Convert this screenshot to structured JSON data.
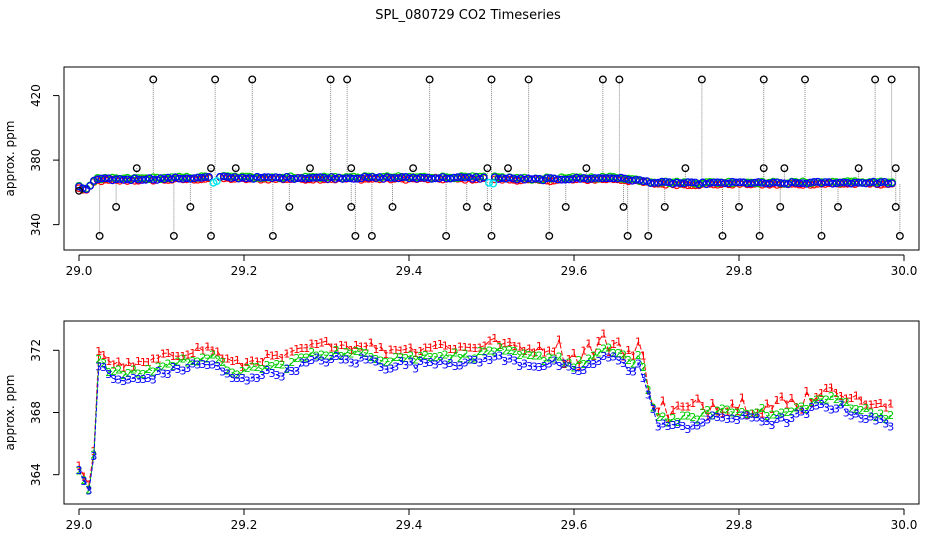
{
  "title": "SPL_080729  CO2 Timeseries",
  "colors": {
    "series1": "#ff0000",
    "series2": "#00cc00",
    "series3": "#0000ff",
    "cyan": "#00e5ee",
    "outlier": "#000000",
    "spike_line": "#888888"
  },
  "chart_data": [
    {
      "type": "scatter",
      "ylabel": "approx. ppm",
      "xlim": [
        29.0,
        30.0
      ],
      "ylim": [
        328,
        434
      ],
      "x_ticks": [
        29.0,
        29.2,
        29.4,
        29.6,
        29.8,
        30.0
      ],
      "x_tick_labels": [
        "29.0",
        "29.2",
        "29.4",
        "29.6",
        "29.8",
        "30.0"
      ],
      "y_ticks": [
        340,
        380,
        420
      ],
      "y_tick_labels": [
        "340",
        "380",
        "420"
      ],
      "series_colors": [
        "red",
        "green",
        "blue"
      ],
      "baseline": [
        [
          29.0,
          363
        ],
        [
          29.01,
          362
        ],
        [
          29.02,
          368
        ],
        [
          29.05,
          368
        ],
        [
          29.1,
          368.5
        ],
        [
          29.15,
          369
        ],
        [
          29.16,
          369.5
        ],
        [
          29.2,
          369
        ],
        [
          29.3,
          369
        ],
        [
          29.35,
          369
        ],
        [
          29.4,
          369
        ],
        [
          29.5,
          369
        ],
        [
          29.55,
          368
        ],
        [
          29.6,
          368.5
        ],
        [
          29.65,
          369
        ],
        [
          29.7,
          366
        ],
        [
          29.75,
          365.5
        ],
        [
          29.8,
          366
        ],
        [
          29.85,
          365.5
        ],
        [
          29.9,
          366
        ],
        [
          29.95,
          366
        ],
        [
          29.98,
          366
        ],
        [
          29.99,
          365
        ]
      ],
      "outliers": [
        {
          "x": 29.0,
          "y": 361
        },
        {
          "x": 29.025,
          "y": 333
        },
        {
          "x": 29.045,
          "y": 351
        },
        {
          "x": 29.07,
          "y": 375
        },
        {
          "x": 29.09,
          "y": 430
        },
        {
          "x": 29.115,
          "y": 333
        },
        {
          "x": 29.135,
          "y": 351
        },
        {
          "x": 29.16,
          "y": 333
        },
        {
          "x": 29.16,
          "y": 375
        },
        {
          "x": 29.165,
          "y": 430
        },
        {
          "x": 29.19,
          "y": 375
        },
        {
          "x": 29.21,
          "y": 430
        },
        {
          "x": 29.235,
          "y": 333
        },
        {
          "x": 29.255,
          "y": 351
        },
        {
          "x": 29.28,
          "y": 375
        },
        {
          "x": 29.305,
          "y": 430
        },
        {
          "x": 29.325,
          "y": 430
        },
        {
          "x": 29.33,
          "y": 375
        },
        {
          "x": 29.33,
          "y": 351
        },
        {
          "x": 29.335,
          "y": 333
        },
        {
          "x": 29.355,
          "y": 333
        },
        {
          "x": 29.38,
          "y": 351
        },
        {
          "x": 29.405,
          "y": 375
        },
        {
          "x": 29.425,
          "y": 430
        },
        {
          "x": 29.445,
          "y": 333
        },
        {
          "x": 29.47,
          "y": 351
        },
        {
          "x": 29.495,
          "y": 351
        },
        {
          "x": 29.495,
          "y": 375
        },
        {
          "x": 29.5,
          "y": 430
        },
        {
          "x": 29.5,
          "y": 333
        },
        {
          "x": 29.52,
          "y": 375
        },
        {
          "x": 29.545,
          "y": 430
        },
        {
          "x": 29.57,
          "y": 333
        },
        {
          "x": 29.59,
          "y": 351
        },
        {
          "x": 29.615,
          "y": 375
        },
        {
          "x": 29.635,
          "y": 430
        },
        {
          "x": 29.655,
          "y": 430
        },
        {
          "x": 29.66,
          "y": 351
        },
        {
          "x": 29.665,
          "y": 333
        },
        {
          "x": 29.69,
          "y": 333
        },
        {
          "x": 29.71,
          "y": 351
        },
        {
          "x": 29.735,
          "y": 375
        },
        {
          "x": 29.755,
          "y": 430
        },
        {
          "x": 29.78,
          "y": 333
        },
        {
          "x": 29.8,
          "y": 351
        },
        {
          "x": 29.825,
          "y": 333
        },
        {
          "x": 29.83,
          "y": 375
        },
        {
          "x": 29.83,
          "y": 430
        },
        {
          "x": 29.85,
          "y": 351
        },
        {
          "x": 29.855,
          "y": 375
        },
        {
          "x": 29.88,
          "y": 430
        },
        {
          "x": 29.9,
          "y": 333
        },
        {
          "x": 29.92,
          "y": 351
        },
        {
          "x": 29.945,
          "y": 375
        },
        {
          "x": 29.965,
          "y": 430
        },
        {
          "x": 29.985,
          "y": 430
        },
        {
          "x": 29.99,
          "y": 375
        },
        {
          "x": 29.99,
          "y": 351
        },
        {
          "x": 29.995,
          "y": 333
        }
      ],
      "cyan_points": [
        {
          "x": 29.163,
          "y": 366
        },
        {
          "x": 29.167,
          "y": 367
        },
        {
          "x": 29.497,
          "y": 366
        },
        {
          "x": 29.502,
          "y": 365.5
        }
      ]
    },
    {
      "type": "line",
      "ylabel": "approx. ppm",
      "xlim": [
        29.0,
        30.0
      ],
      "ylim": [
        362.5,
        373.5
      ],
      "x_ticks": [
        29.0,
        29.2,
        29.4,
        29.6,
        29.8,
        30.0
      ],
      "x_tick_labels": [
        "29.0",
        "29.2",
        "29.4",
        "29.6",
        "29.8",
        "30.0"
      ],
      "y_ticks": [
        364,
        368,
        372
      ],
      "y_tick_labels": [
        "364",
        "368",
        "372"
      ],
      "series": [
        {
          "marker": "1",
          "color": "red",
          "offset": 0.55
        },
        {
          "marker": "2",
          "color": "green",
          "offset": 0.0
        },
        {
          "marker": "3",
          "color": "blue",
          "offset": -0.45
        }
      ],
      "base_curve": [
        [
          29.0,
          364.3
        ],
        [
          29.01,
          363.2
        ],
        [
          29.015,
          363.0
        ],
        [
          29.02,
          367.0
        ],
        [
          29.023,
          371.5
        ],
        [
          29.03,
          371.2
        ],
        [
          29.04,
          370.6
        ],
        [
          29.06,
          370.5
        ],
        [
          29.08,
          370.6
        ],
        [
          29.1,
          371.0
        ],
        [
          29.12,
          371.2
        ],
        [
          29.14,
          371.5
        ],
        [
          29.16,
          371.6
        ],
        [
          29.18,
          370.8
        ],
        [
          29.2,
          370.5
        ],
        [
          29.21,
          370.8
        ],
        [
          29.23,
          371.0
        ],
        [
          29.25,
          371.0
        ],
        [
          29.27,
          371.5
        ],
        [
          29.29,
          371.8
        ],
        [
          29.31,
          371.9
        ],
        [
          29.33,
          371.7
        ],
        [
          29.35,
          371.9
        ],
        [
          29.37,
          371.4
        ],
        [
          29.39,
          371.6
        ],
        [
          29.41,
          371.5
        ],
        [
          29.43,
          371.8
        ],
        [
          29.45,
          371.7
        ],
        [
          29.47,
          371.6
        ],
        [
          29.49,
          371.8
        ],
        [
          29.5,
          372.1
        ],
        [
          29.52,
          371.8
        ],
        [
          29.54,
          371.6
        ],
        [
          29.56,
          371.5
        ],
        [
          29.58,
          371.6
        ],
        [
          29.6,
          371.0
        ],
        [
          29.62,
          371.5
        ],
        [
          29.64,
          372.0
        ],
        [
          29.66,
          371.8
        ],
        [
          29.67,
          371.0
        ],
        [
          29.68,
          371.6
        ],
        [
          29.69,
          369.5
        ],
        [
          29.7,
          367.8
        ],
        [
          29.72,
          367.5
        ],
        [
          29.74,
          367.6
        ],
        [
          29.76,
          367.9
        ],
        [
          29.78,
          368.2
        ],
        [
          29.8,
          368.0
        ],
        [
          29.82,
          368.2
        ],
        [
          29.84,
          367.8
        ],
        [
          29.86,
          368.0
        ],
        [
          29.88,
          368.4
        ],
        [
          29.9,
          368.9
        ],
        [
          29.92,
          368.8
        ],
        [
          29.94,
          368.4
        ],
        [
          29.96,
          368.0
        ],
        [
          29.98,
          367.8
        ]
      ]
    }
  ]
}
